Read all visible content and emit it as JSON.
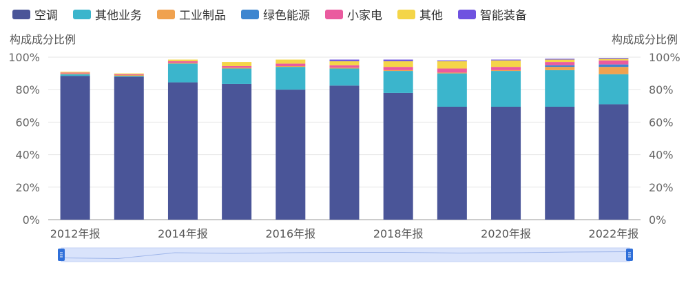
{
  "chart_data": {
    "type": "bar",
    "stacked": true,
    "categories": [
      "2012年报",
      "2013年报",
      "2014年报",
      "2015年报",
      "2016年报",
      "2017年报",
      "2018年报",
      "2019年报",
      "2020年报",
      "2021年报",
      "2022年报"
    ],
    "x_tick_labels": [
      "2012年报",
      "2014年报",
      "2016年报",
      "2018年报",
      "2020年报",
      "2022年报"
    ],
    "series": [
      {
        "name": "空调",
        "color": "#4a5598",
        "values": [
          88.5,
          88,
          84.5,
          83.5,
          80,
          82.5,
          78,
          69.5,
          69.5,
          69.5,
          71
        ]
      },
      {
        "name": "其他业务",
        "color": "#3bb5cc",
        "values": [
          1,
          0.5,
          11.5,
          9.5,
          14,
          10.5,
          13.5,
          20.5,
          22,
          22.5,
          18.5
        ]
      },
      {
        "name": "工业制品",
        "color": "#f0a24f",
        "values": [
          0.5,
          0.5,
          0.5,
          0.5,
          0.5,
          0.5,
          0.5,
          0.5,
          0.5,
          2,
          4.5
        ]
      },
      {
        "name": "绿色能源",
        "color": "#3d86d0",
        "values": [
          0,
          0,
          0,
          0,
          0,
          0,
          0,
          0,
          0,
          1,
          1.5
        ]
      },
      {
        "name": "小家电",
        "color": "#ea5b9f",
        "values": [
          0.5,
          0.5,
          1,
          1,
          1.5,
          1.5,
          2,
          2.5,
          2,
          2,
          2.5
        ]
      },
      {
        "name": "其他",
        "color": "#f4d548",
        "values": [
          0.5,
          0.5,
          1,
          2.5,
          2.5,
          2.5,
          3.5,
          4.5,
          4,
          1.5,
          1
        ]
      },
      {
        "name": "智能装备",
        "color": "#6f53e0",
        "values": [
          0,
          0,
          0,
          0,
          0,
          1,
          1,
          0.5,
          0.5,
          0.5,
          0.5
        ]
      }
    ],
    "ylim": [
      0,
      100
    ],
    "y_ticks": [
      "0%",
      "20%",
      "40%",
      "60%",
      "80%",
      "100%"
    ],
    "y_tick_values": [
      0,
      20,
      40,
      60,
      80,
      100
    ],
    "ylabel_left": "构成成分比例",
    "ylabel_right": "构成成分比例",
    "legend_position": "top-left",
    "grid": true,
    "data_zoom": {
      "start_label": "",
      "end_label": "",
      "overview_values": [
        90.5,
        89.5,
        98,
        97,
        98,
        98.5,
        98.5,
        97.5,
        98,
        99,
        99.5
      ]
    }
  }
}
